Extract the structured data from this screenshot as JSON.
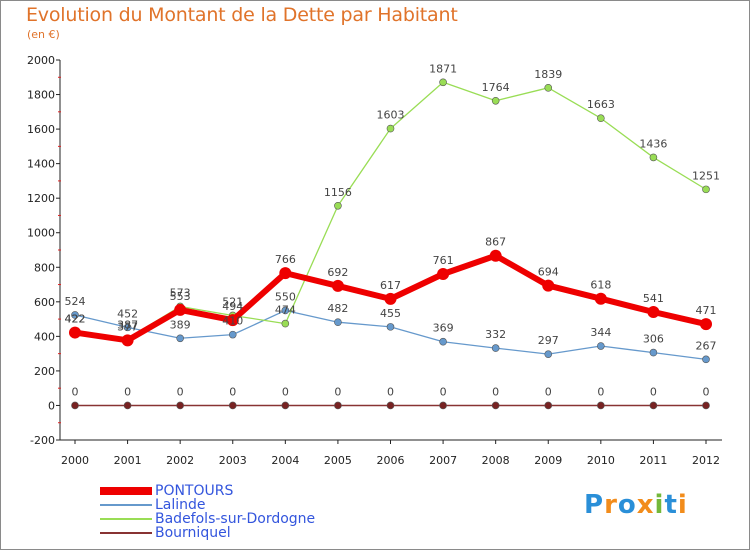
{
  "title": "Evolution du Montant de la Dette par Habitant",
  "subtitle": "(en €)",
  "logo": {
    "text": "Proxiti",
    "letters": [
      "P",
      "r",
      "o",
      "x",
      "i",
      "t",
      "i"
    ],
    "colors": [
      "#2a8fd8",
      "#f28c1b",
      "#2a8fd8",
      "#f28c1b",
      "#74b83a",
      "#2a8fd8",
      "#f28c1b"
    ]
  },
  "chart_data": {
    "type": "line",
    "title": "Evolution du Montant de la Dette par Habitant",
    "ylabel": "(en €)",
    "xlabel": "",
    "x": [
      "2000",
      "2001",
      "2002",
      "2003",
      "2004",
      "2005",
      "2006",
      "2007",
      "2008",
      "2009",
      "2010",
      "2011",
      "2012"
    ],
    "ylim": [
      -200,
      2000
    ],
    "yticks": [
      "-200",
      "0",
      "200",
      "400",
      "600",
      "800",
      "1000",
      "1200",
      "1400",
      "1600",
      "1800",
      "2000"
    ],
    "grid": false,
    "legend": "bottom-left",
    "series": [
      {
        "name": "PONTOURS",
        "color": "#ee0000",
        "values": [
          422,
          377,
          553,
          494,
          766,
          692,
          617,
          761,
          867,
          694,
          618,
          541,
          471
        ],
        "labels": [
          "422",
          "377",
          "553",
          "494",
          "766",
          "692",
          "617",
          "761",
          "867",
          "694",
          "618",
          "541",
          "471"
        ]
      },
      {
        "name": "Lalinde",
        "color": "#6699cc",
        "values": [
          524,
          452,
          389,
          410,
          550,
          482,
          455,
          369,
          332,
          297,
          344,
          306,
          267
        ],
        "labels": [
          "524",
          "452",
          "389",
          "410",
          "550",
          "482",
          "455",
          "369",
          "332",
          "297",
          "344",
          "306",
          "267"
        ]
      },
      {
        "name": "Badefols-sur-Dordogne",
        "color": "#99dd55",
        "values": [
          422,
          387,
          573,
          521,
          474,
          1156,
          1603,
          1871,
          1764,
          1839,
          1663,
          1436,
          1251
        ],
        "labels": [
          "422",
          "387",
          "573",
          "521",
          "474",
          "1156",
          "1603",
          "1871",
          "1764",
          "1839",
          "1663",
          "1436",
          "1251"
        ]
      },
      {
        "name": "Bourniquel",
        "color": "#883333",
        "values": [
          0,
          0,
          0,
          0,
          0,
          0,
          0,
          0,
          0,
          0,
          0,
          0,
          0
        ],
        "labels": [
          "0",
          "0",
          "0",
          "0",
          "0",
          "0",
          "0",
          "0",
          "0",
          "0",
          "0",
          "0",
          "0"
        ]
      }
    ]
  }
}
